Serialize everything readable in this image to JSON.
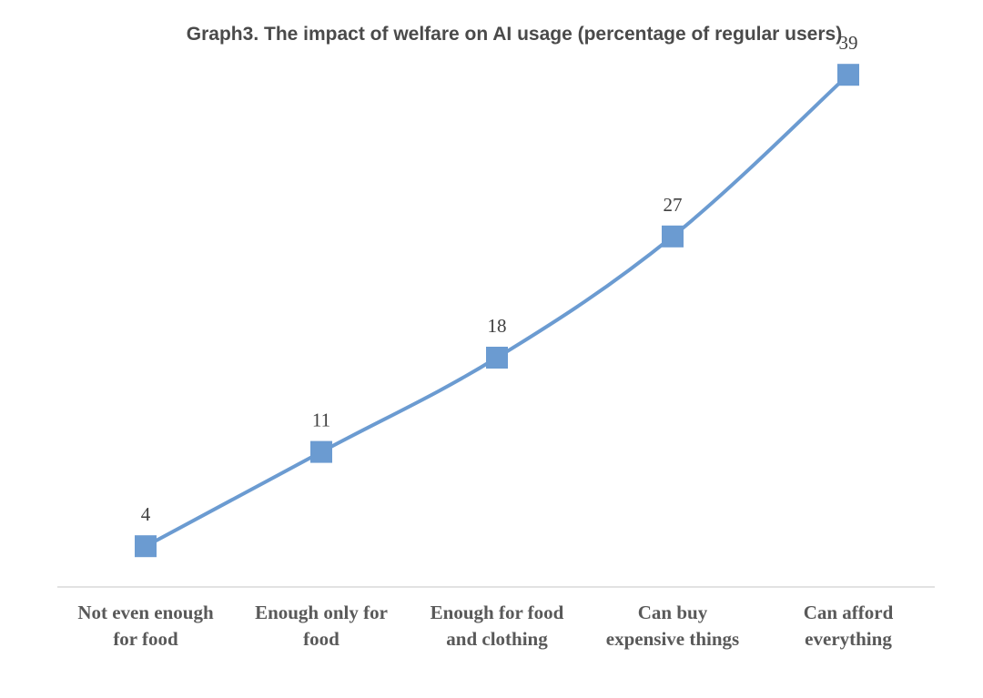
{
  "chart_data": {
    "type": "line",
    "title": "Graph3. The impact of welfare on AI usage (percentage of regular users)",
    "categories": [
      [
        "Not even enough",
        "for food"
      ],
      [
        "Enough only for",
        "food"
      ],
      [
        "Enough for food",
        "and clothing"
      ],
      [
        "Can buy",
        "expensive things"
      ],
      [
        "Can afford",
        "everything"
      ]
    ],
    "series": [
      {
        "values": [
          4,
          11,
          18,
          27,
          39
        ]
      }
    ],
    "data_labels": [
      "4",
      "11",
      "18",
      "27",
      "39"
    ],
    "ylim": [
      0,
      46
    ],
    "grid": false,
    "legend": "none",
    "line_color": "#6b9bd1",
    "marker": "square"
  }
}
